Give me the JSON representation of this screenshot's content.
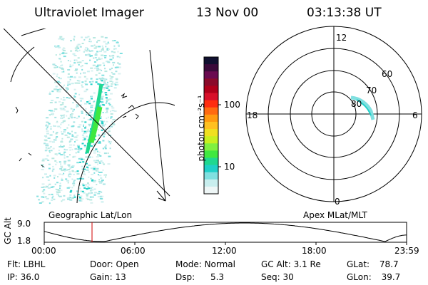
{
  "header": {
    "instrument": "Ultraviolet Imager",
    "date": "13 Nov 00",
    "time": "03:13:38 UT"
  },
  "colorbar": {
    "unit_label": "photon cm⁻²s⁻¹",
    "ticks": [
      "100",
      "10"
    ],
    "colors": [
      "#101030",
      "#3a0a3a",
      "#6a0a50",
      "#8a0a2a",
      "#b0001a",
      "#d8102a",
      "#ff2d10",
      "#ff6a10",
      "#ff9a10",
      "#ffc020",
      "#f0e020",
      "#c8f020",
      "#80f040",
      "#40e840",
      "#20d890",
      "#20d0c8",
      "#80e0e0",
      "#c8eeee",
      "#eef6f6"
    ]
  },
  "left_panel": {
    "label": "Geographic Lat/Lon"
  },
  "right_panel": {
    "label": "Apex MLat/MLT",
    "mlt_labels": {
      "top": "12",
      "left": "18",
      "right": "6",
      "bottom": "0"
    },
    "lat_labels": [
      "60",
      "70",
      "80"
    ]
  },
  "altitude_plot": {
    "ylabel": "GC Alt",
    "yticks": [
      "9.0",
      "1.8"
    ],
    "xticks": [
      "00:00",
      "06:00",
      "12:00",
      "18:00",
      "23:59"
    ],
    "marker_color": "#d00000"
  },
  "footer": {
    "row1": [
      {
        "label": "Flt:",
        "value": "LBHL"
      },
      {
        "label": "Door:",
        "value": "Open"
      },
      {
        "label": "Mode:",
        "value": "Normal"
      },
      {
        "label": "GC Alt:",
        "value": "3.1 Re"
      },
      {
        "label": "GLat:",
        "value": "78.7"
      }
    ],
    "row2": [
      {
        "label": "IP:",
        "value": "36.0"
      },
      {
        "label": "Gain:",
        "value": "13"
      },
      {
        "label": "Dsp:",
        "value": "5.3"
      },
      {
        "label": "Seq:",
        "value": "30"
      },
      {
        "label": "GLon:",
        "value": "39.7"
      }
    ]
  }
}
